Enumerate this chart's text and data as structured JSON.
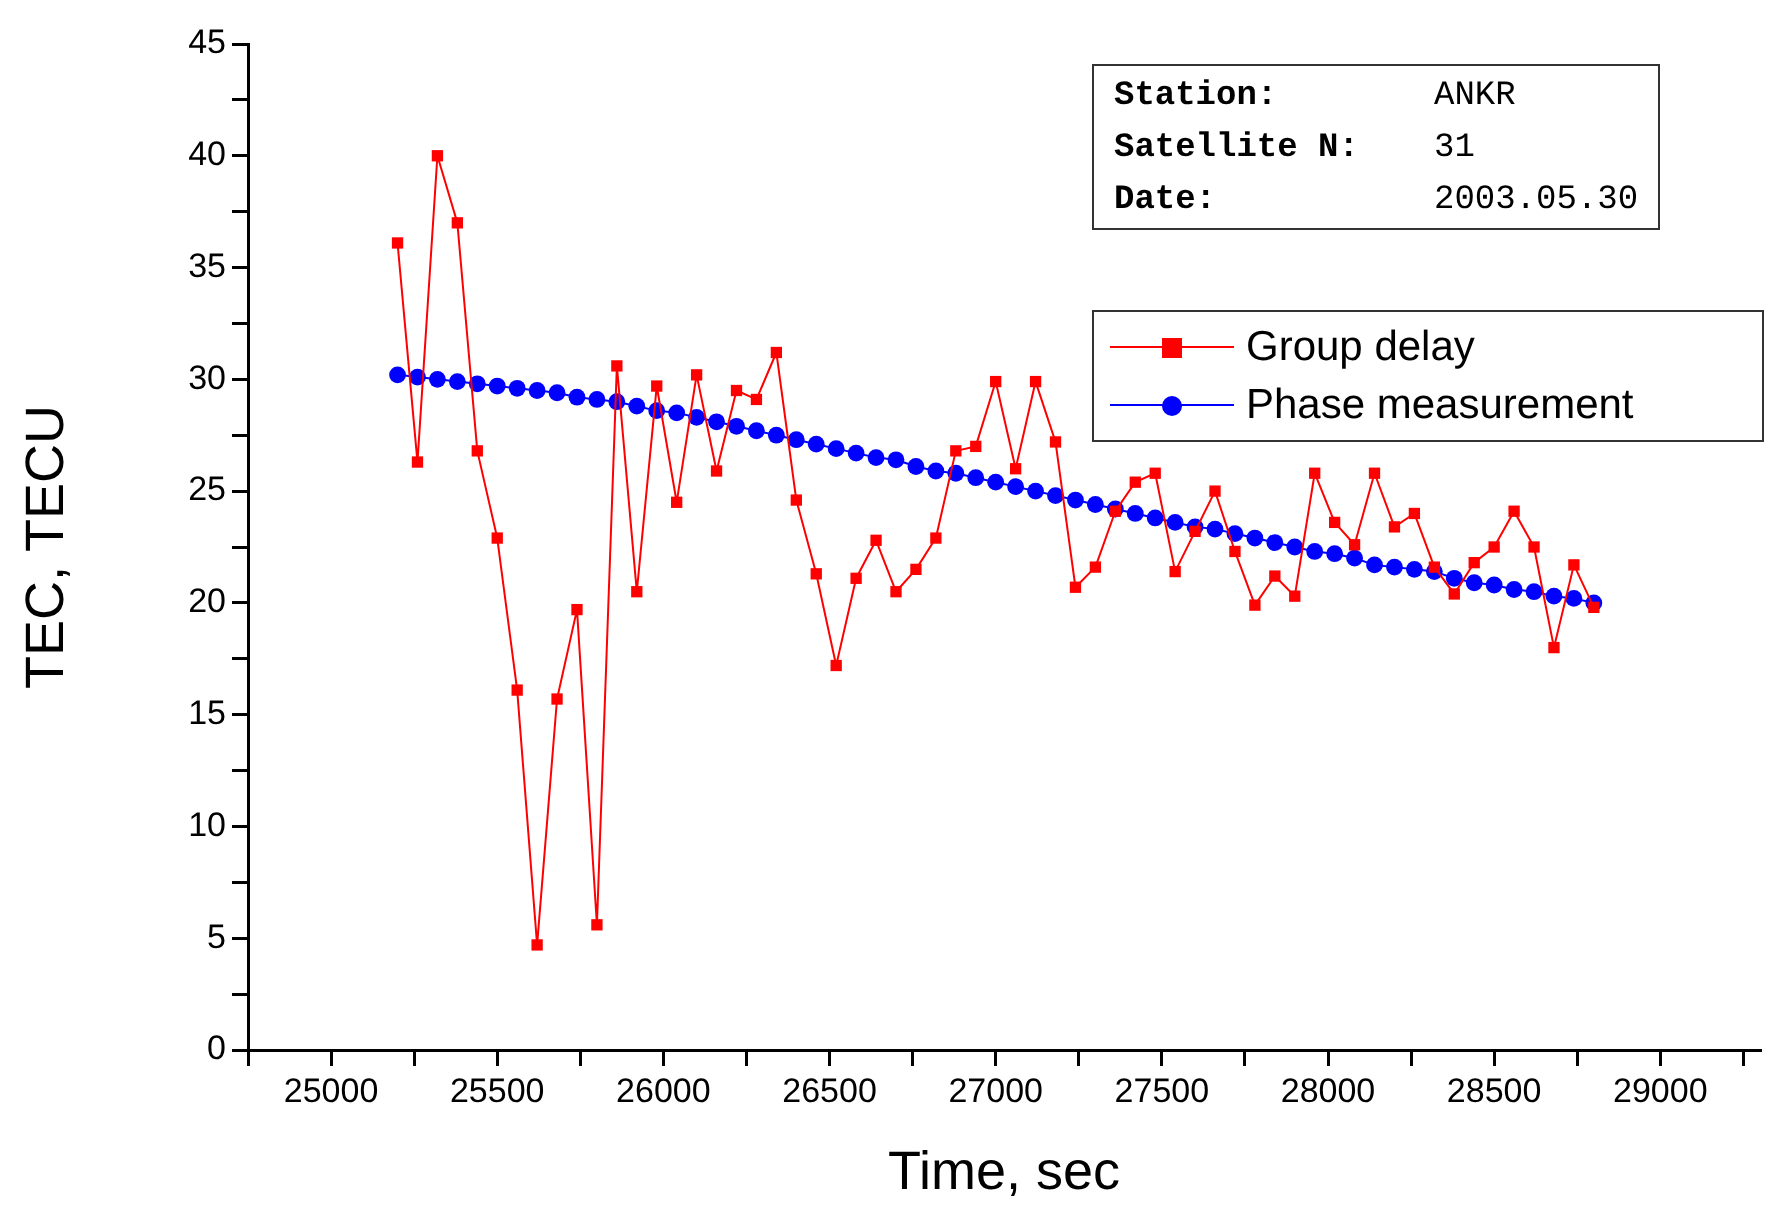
{
  "chart_data": {
    "type": "line",
    "xlabel": "Time, sec",
    "ylabel": "TEC, TECU",
    "annotations": [
      "Station:",
      "ANKR",
      "Satellite N:",
      "31",
      "Date:",
      "2003.05.30"
    ],
    "x": [
      25200,
      25260,
      25320,
      25380,
      25440,
      25500,
      25560,
      25620,
      25680,
      25740,
      25800,
      25860,
      25920,
      25980,
      26040,
      26100,
      26160,
      26220,
      26280,
      26340,
      26400,
      26460,
      26520,
      26580,
      26640,
      26700,
      26760,
      26820,
      26880,
      26940,
      27000,
      27060,
      27120,
      27180,
      27240,
      27300,
      27360,
      27420,
      27480,
      27540,
      27600,
      27660,
      27720,
      27780,
      27840,
      27900,
      27960,
      28020,
      28080,
      28140,
      28200,
      28260,
      28320,
      28380,
      28440,
      28500,
      28560,
      28620,
      28680,
      28740,
      28800
    ],
    "series": [
      {
        "name": "Group delay",
        "color": "#ff0000",
        "marker": "square",
        "values": [
          36.1,
          26.3,
          40.0,
          37.0,
          26.8,
          22.9,
          16.1,
          4.7,
          15.7,
          19.7,
          5.6,
          30.6,
          20.5,
          29.7,
          24.5,
          30.2,
          25.9,
          29.5,
          29.1,
          31.2,
          24.6,
          21.3,
          17.2,
          21.1,
          22.8,
          20.5,
          21.5,
          22.9,
          26.8,
          27.0,
          29.9,
          26.0,
          29.9,
          27.2,
          20.7,
          21.6,
          24.1,
          25.4,
          25.8,
          21.4,
          23.2,
          25.0,
          22.3,
          19.9,
          21.2,
          20.3,
          25.8,
          23.6,
          22.6,
          25.8,
          23.4,
          24.0,
          21.6,
          20.4,
          21.8,
          22.5,
          24.1,
          22.5,
          18.0,
          21.7,
          19.8
        ]
      },
      {
        "name": "Phase measurement",
        "color": "#0000ff",
        "marker": "circle",
        "values": [
          30.2,
          30.1,
          30.0,
          29.9,
          29.8,
          29.7,
          29.6,
          29.5,
          29.4,
          29.2,
          29.1,
          29.0,
          28.8,
          28.6,
          28.5,
          28.3,
          28.1,
          27.9,
          27.7,
          27.5,
          27.3,
          27.1,
          26.9,
          26.7,
          26.5,
          26.4,
          26.1,
          25.9,
          25.8,
          25.6,
          25.4,
          25.2,
          25.0,
          24.8,
          24.6,
          24.4,
          24.2,
          24.0,
          23.8,
          23.6,
          23.4,
          23.3,
          23.1,
          22.9,
          22.7,
          22.5,
          22.3,
          22.2,
          22.0,
          21.7,
          21.6,
          21.5,
          21.4,
          21.1,
          20.9,
          20.8,
          20.6,
          20.5,
          20.3,
          20.2,
          20.0
        ]
      }
    ],
    "xlim": [
      24750,
      29300
    ],
    "xticks": [
      {
        "value": 24750,
        "label": null
      },
      25000,
      {
        "value": 25250,
        "label": null
      },
      25500,
      {
        "value": 25750,
        "label": null
      },
      26000,
      {
        "value": 26250,
        "label": null
      },
      26500,
      {
        "value": 26750,
        "label": null
      },
      27000,
      {
        "value": 27250,
        "label": null
      },
      27500,
      {
        "value": 27750,
        "label": null
      },
      28000,
      {
        "value": 28250,
        "label": null
      },
      28500,
      {
        "value": 28750,
        "label": null
      },
      29000,
      {
        "value": 29250,
        "label": null
      }
    ],
    "ylim": [
      0,
      45
    ],
    "yticks": [
      0,
      {
        "value": 2.5,
        "label": null
      },
      5,
      {
        "value": 7.5,
        "label": null
      },
      10,
      {
        "value": 12.5,
        "label": null
      },
      15,
      {
        "value": 17.5,
        "label": null
      },
      20,
      {
        "value": 22.5,
        "label": null
      },
      25,
      {
        "value": 27.5,
        "label": null
      },
      30,
      {
        "value": 32.5,
        "label": null
      },
      35,
      {
        "value": 37.5,
        "label": null
      },
      40,
      {
        "value": 42.5,
        "label": null
      },
      45
    ],
    "grid": false,
    "legend": "top right",
    "line_style": "solid"
  }
}
